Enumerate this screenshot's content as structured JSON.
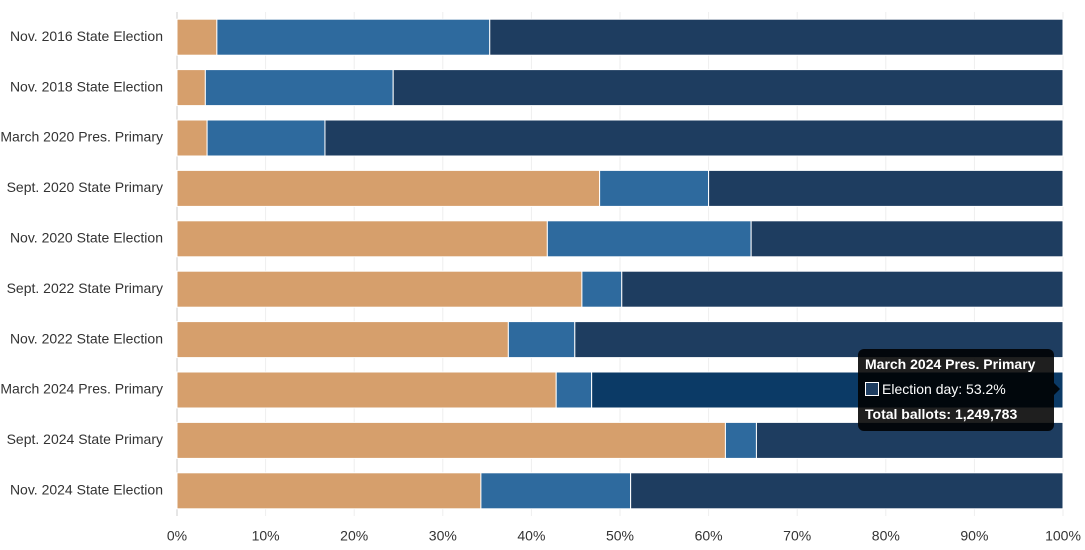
{
  "chart_data": {
    "type": "stacked-bar-horizontal",
    "categories": [
      "Nov. 2016 State Election",
      "Nov. 2018 State Election",
      "March 2020 Pres. Primary",
      "Sept. 2020 State Primary",
      "Nov. 2020 State Election",
      "Sept. 2022 State Primary",
      "Nov. 2022 State Election",
      "March 2024 Pres. Primary",
      "Sept. 2024 State Primary",
      "Nov. 2024 State Election"
    ],
    "series": [
      {
        "color": "#d69f6c",
        "values": [
          4.5,
          3.2,
          3.4,
          47.7,
          41.8,
          45.7,
          37.4,
          42.8,
          61.9,
          34.3
        ]
      },
      {
        "color": "#2e6a9e",
        "values": [
          30.8,
          21.2,
          13.3,
          12.3,
          23.0,
          4.5,
          7.5,
          4.0,
          3.5,
          16.9
        ]
      },
      {
        "color": "#1e3d60",
        "values": [
          64.7,
          75.6,
          83.3,
          40.0,
          35.2,
          49.8,
          55.1,
          53.2,
          34.6,
          48.8
        ]
      }
    ],
    "xlim": [
      0,
      100
    ],
    "xticks": [
      {
        "value": 0,
        "label": "0%"
      },
      {
        "value": 10,
        "label": "10%"
      },
      {
        "value": 20,
        "label": "20%"
      },
      {
        "value": 30,
        "label": "30%"
      },
      {
        "value": 40,
        "label": "40%"
      },
      {
        "value": 50,
        "label": "50%"
      },
      {
        "value": 60,
        "label": "60%"
      },
      {
        "value": 70,
        "label": "70%"
      },
      {
        "value": 80,
        "label": "80%"
      },
      {
        "value": 90,
        "label": "90%"
      },
      {
        "value": 100,
        "label": "100%"
      }
    ],
    "grid": true,
    "highlight_color": "#0b3a66",
    "tooltip": {
      "text": "Election day: 53.2%",
      "total": "Total ballots: 1,249,783"
    }
  }
}
